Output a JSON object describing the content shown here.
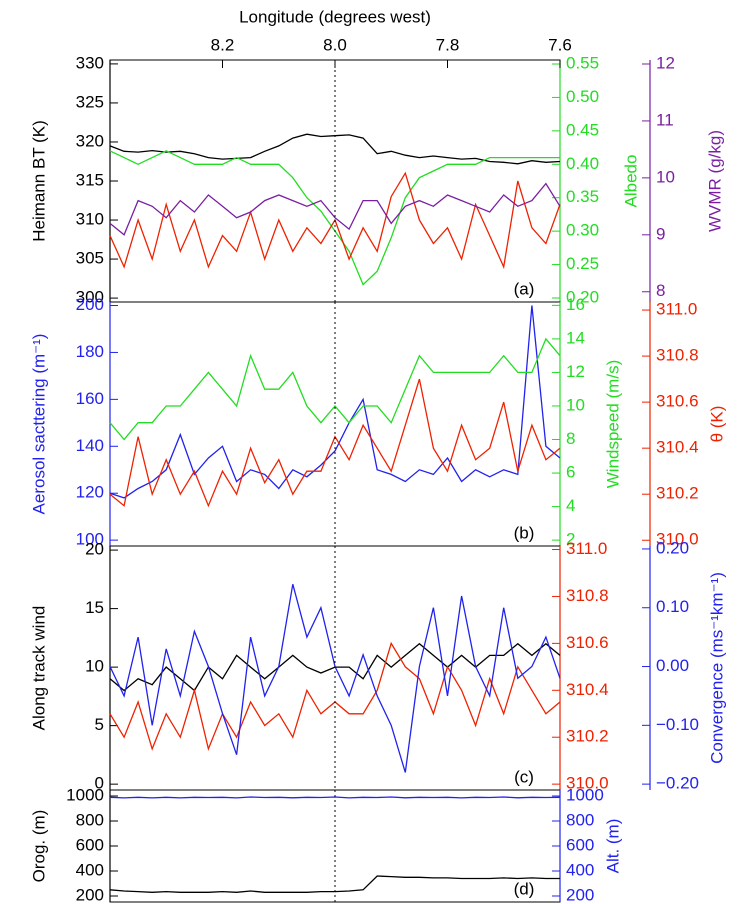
{
  "chart_data": [
    {
      "type": "line",
      "xlabel": "Longitude (degrees west)",
      "x": [
        8.4,
        8.375,
        8.35,
        8.325,
        8.3,
        8.275,
        8.25,
        8.225,
        8.2,
        8.175,
        8.15,
        8.125,
        8.1,
        8.075,
        8.05,
        8.025,
        8.0,
        7.975,
        7.95,
        7.925,
        7.9,
        7.875,
        7.85,
        7.825,
        7.8,
        7.775,
        7.75,
        7.725,
        7.7,
        7.675,
        7.65,
        7.625,
        7.6
      ],
      "xlim": [
        8.4,
        7.6
      ],
      "xticks": [
        8.2,
        {
          "value": 8.0,
          "label": "8.0"
        },
        7.8,
        7.6
      ],
      "vline": 8.0,
      "panel_label": "(a)",
      "ylabel": "Heimann BT (K)",
      "ylim": [
        299.5,
        330.5
      ],
      "yticks": [
        300,
        305,
        310,
        315,
        320,
        325,
        330
      ],
      "ycolor": "#000000",
      "y2label": "Albedo",
      "y2lim": [
        0.194,
        0.556
      ],
      "y2ticks": [
        {
          "value": 0.2,
          "label": "0.20"
        },
        0.25,
        {
          "value": 0.3,
          "label": "0.30"
        },
        0.35,
        {
          "value": 0.4,
          "label": "0.40"
        },
        0.45,
        {
          "value": 0.5,
          "label": "0.50"
        },
        0.55
      ],
      "y2color": "#22dd22",
      "y3label": "WVMR (g/kg)",
      "y3lim": [
        7.82,
        12.07
      ],
      "y3ticks": [
        8,
        9,
        10,
        11,
        12
      ],
      "y3color": "#7a1fa2",
      "series": [
        {
          "color": "#000000",
          "axis": "y",
          "values": [
            319.5,
            318.8,
            318.7,
            318.9,
            318.7,
            318.8,
            318.5,
            318.0,
            317.8,
            317.9,
            318.0,
            318.8,
            319.5,
            320.5,
            321.0,
            320.7,
            320.8,
            320.9,
            320.5,
            318.5,
            318.8,
            318.3,
            318.0,
            318.2,
            318.0,
            317.8,
            317.9,
            317.5,
            317.4,
            317.2,
            317.6,
            317.4,
            317.5
          ]
        },
        {
          "color": "#22dd22",
          "axis": "y2",
          "values": [
            0.42,
            0.41,
            0.4,
            0.41,
            0.42,
            0.41,
            0.4,
            0.4,
            0.4,
            0.41,
            0.4,
            0.4,
            0.4,
            0.38,
            0.35,
            0.33,
            0.3,
            0.27,
            0.22,
            0.24,
            0.29,
            0.35,
            0.38,
            0.39,
            0.4,
            0.4,
            0.4,
            0.41,
            0.41,
            0.41,
            0.41,
            0.41,
            0.41
          ]
        },
        {
          "color": "#ee2200",
          "axis": "y",
          "values": [
            308,
            304,
            310,
            305,
            312,
            306,
            310,
            304,
            308,
            306,
            311,
            305,
            310,
            306,
            309,
            307,
            310,
            305,
            309,
            306,
            313,
            316,
            310,
            307,
            309,
            305,
            312,
            308,
            304,
            315,
            309,
            307,
            312
          ]
        },
        {
          "color": "#7a1fa2",
          "axis": "y3",
          "values": [
            9.2,
            9.0,
            9.6,
            9.5,
            9.3,
            9.6,
            9.4,
            9.7,
            9.5,
            9.3,
            9.4,
            9.6,
            9.7,
            9.6,
            9.5,
            9.6,
            9.3,
            9.1,
            9.6,
            9.6,
            9.2,
            9.5,
            9.6,
            9.5,
            9.7,
            9.6,
            9.5,
            9.4,
            9.7,
            9.5,
            9.6,
            9.9,
            9.5
          ]
        }
      ]
    },
    {
      "type": "line",
      "x": [
        8.4,
        8.375,
        8.35,
        8.325,
        8.3,
        8.275,
        8.25,
        8.225,
        8.2,
        8.175,
        8.15,
        8.125,
        8.1,
        8.075,
        8.05,
        8.025,
        8.0,
        7.975,
        7.95,
        7.925,
        7.9,
        7.875,
        7.85,
        7.825,
        7.8,
        7.775,
        7.75,
        7.725,
        7.7,
        7.675,
        7.65,
        7.625,
        7.6
      ],
      "xlim": [
        8.4,
        7.6
      ],
      "vline": 8.0,
      "panel_label": "(b)",
      "ylabel": "Aerosol sacttering (m⁻¹)",
      "ylim": [
        97.5,
        201.5
      ],
      "yticks": [
        100,
        120,
        140,
        160,
        180,
        200
      ],
      "ycolor": "#2222ee",
      "y2label": "Windspeed (m/s)",
      "y2lim": [
        1.65,
        16.2
      ],
      "y2ticks": [
        2,
        4,
        6,
        8,
        10,
        12,
        14,
        16
      ],
      "y2color": "#22dd22",
      "y3label": "θ (K)",
      "y3lim": [
        309.975,
        311.035
      ],
      "y3ticks": [
        {
          "value": 310.0,
          "label": "310.0"
        },
        310.2,
        310.4,
        310.6,
        310.8,
        {
          "value": 311.0,
          "label": "311.0"
        }
      ],
      "y3color": "#ee2200",
      "series": [
        {
          "color": "#2222ee",
          "axis": "y",
          "values": [
            120,
            118,
            122,
            125,
            130,
            145,
            128,
            135,
            140,
            125,
            130,
            128,
            122,
            130,
            127,
            132,
            138,
            150,
            160,
            130,
            128,
            125,
            130,
            128,
            135,
            125,
            130,
            127,
            130,
            128,
            200,
            140,
            135
          ]
        },
        {
          "color": "#22dd22",
          "axis": "y2",
          "values": [
            9,
            8,
            9,
            9,
            10,
            10,
            11,
            12,
            11,
            10,
            13,
            11,
            11,
            12,
            10,
            9,
            10,
            9,
            10,
            10,
            9,
            11,
            13,
            12,
            12,
            12,
            12,
            12,
            13,
            12,
            12,
            14,
            13
          ]
        },
        {
          "color": "#ee2200",
          "axis": "y3",
          "values": [
            310.2,
            310.15,
            310.45,
            310.2,
            310.35,
            310.2,
            310.3,
            310.15,
            310.3,
            310.2,
            310.4,
            310.25,
            310.35,
            310.2,
            310.3,
            310.3,
            310.45,
            310.35,
            310.5,
            310.4,
            310.3,
            310.5,
            310.7,
            310.4,
            310.3,
            310.5,
            310.35,
            310.4,
            310.6,
            310.3,
            310.5,
            310.35,
            310.4
          ]
        }
      ]
    },
    {
      "type": "line",
      "x": [
        8.4,
        8.375,
        8.35,
        8.325,
        8.3,
        8.275,
        8.25,
        8.225,
        8.2,
        8.175,
        8.15,
        8.125,
        8.1,
        8.075,
        8.05,
        8.025,
        8.0,
        7.975,
        7.95,
        7.925,
        7.9,
        7.875,
        7.85,
        7.825,
        7.8,
        7.775,
        7.75,
        7.725,
        7.7,
        7.675,
        7.65,
        7.625,
        7.6
      ],
      "xlim": [
        8.4,
        7.6
      ],
      "vline": 8.0,
      "panel_label": "(c)",
      "ylabel": "Along track wind",
      "ylim": [
        -0.5,
        20.35
      ],
      "yticks": [
        0,
        5,
        10,
        15,
        20
      ],
      "ycolor": "#000000",
      "y2lim": [
        309.975,
        311.015
      ],
      "y2ticks": [
        {
          "value": 310.0,
          "label": "310.0"
        },
        310.2,
        310.4,
        310.6,
        310.8,
        {
          "value": 311.0,
          "label": "311.0"
        }
      ],
      "y2color": "#ee2200",
      "y3label": "Convergence (ms⁻¹km⁻¹)",
      "y3lim": [
        -0.21,
        0.205
      ],
      "y3ticks": [
        {
          "value": -0.2,
          "label": "−0.20"
        },
        {
          "value": -0.1,
          "label": "−0.10"
        },
        {
          "value": 0,
          "label": "0.00"
        },
        {
          "value": 0.1,
          "label": "0.10"
        },
        {
          "value": 0.2,
          "label": "0.20"
        }
      ],
      "y3color": "#2222ee",
      "series": [
        {
          "color": "#000000",
          "axis": "y",
          "values": [
            9,
            8,
            9,
            8.5,
            10,
            9,
            8,
            10,
            9,
            11,
            10,
            9,
            10,
            11,
            10,
            9.5,
            10,
            10,
            9,
            11,
            10,
            11,
            12,
            11,
            10,
            11,
            10,
            11,
            11,
            12,
            11,
            12,
            11
          ]
        },
        {
          "color": "#ee2200",
          "axis": "y2",
          "values": [
            310.3,
            310.2,
            310.35,
            310.15,
            310.3,
            310.2,
            310.4,
            310.15,
            310.3,
            310.2,
            310.35,
            310.25,
            310.3,
            310.2,
            310.4,
            310.3,
            310.35,
            310.3,
            310.3,
            310.4,
            310.6,
            310.5,
            310.45,
            310.3,
            310.5,
            310.4,
            310.25,
            310.45,
            310.3,
            310.5,
            310.4,
            310.3,
            310.35
          ]
        },
        {
          "color": "#2222ee",
          "axis": "y3",
          "values": [
            0.0,
            -0.05,
            0.05,
            -0.1,
            0.03,
            -0.05,
            0.06,
            0.0,
            -0.08,
            -0.15,
            0.05,
            -0.05,
            0.0,
            0.14,
            0.05,
            0.1,
            0.0,
            -0.05,
            0.02,
            -0.05,
            -0.1,
            -0.18,
            0.0,
            0.1,
            -0.05,
            0.12,
            0.0,
            -0.05,
            0.1,
            -0.02,
            0.0,
            0.05,
            -0.02
          ]
        }
      ]
    },
    {
      "type": "line",
      "x": [
        8.4,
        8.375,
        8.35,
        8.325,
        8.3,
        8.275,
        8.25,
        8.225,
        8.2,
        8.175,
        8.15,
        8.125,
        8.1,
        8.075,
        8.05,
        8.025,
        8.0,
        7.975,
        7.95,
        7.925,
        7.9,
        7.875,
        7.85,
        7.825,
        7.8,
        7.775,
        7.75,
        7.725,
        7.7,
        7.675,
        7.65,
        7.625,
        7.6
      ],
      "xlim": [
        8.4,
        7.6
      ],
      "vline": 8.0,
      "panel_label": "(d)",
      "ylabel": "Orog. (m)",
      "ylim": [
        152,
        1048
      ],
      "yticks": [
        200,
        400,
        600,
        800,
        1000
      ],
      "ycolor": "#000000",
      "y2label": "Alt. (m)",
      "y2lim": [
        152,
        1048
      ],
      "y2ticks": [
        200,
        400,
        600,
        800,
        1000
      ],
      "y2color": "#2222ee",
      "series": [
        {
          "color": "#000000",
          "axis": "y",
          "values": [
            250,
            240,
            235,
            230,
            235,
            230,
            230,
            230,
            235,
            230,
            240,
            230,
            230,
            230,
            230,
            235,
            235,
            240,
            250,
            360,
            355,
            350,
            350,
            345,
            345,
            340,
            340,
            340,
            345,
            340,
            345,
            340,
            340
          ]
        },
        {
          "color": "#2222ee",
          "axis": "y2",
          "values": [
            990,
            985,
            990,
            985,
            990,
            985,
            990,
            988,
            990,
            985,
            992,
            988,
            990,
            986,
            990,
            988,
            992,
            985,
            990,
            988,
            992,
            986,
            990,
            988,
            990,
            985,
            990,
            988,
            992,
            986,
            990,
            988,
            990
          ]
        }
      ]
    }
  ]
}
